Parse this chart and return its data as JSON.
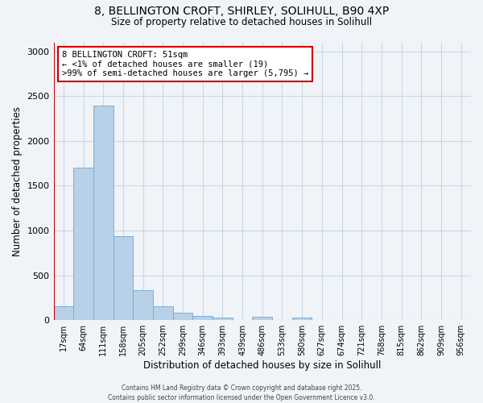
{
  "title_line1": "8, BELLINGTON CROFT, SHIRLEY, SOLIHULL, B90 4XP",
  "title_line2": "Size of property relative to detached houses in Solihull",
  "xlabel": "Distribution of detached houses by size in Solihull",
  "ylabel": "Number of detached properties",
  "categories": [
    "17sqm",
    "64sqm",
    "111sqm",
    "158sqm",
    "205sqm",
    "252sqm",
    "299sqm",
    "346sqm",
    "393sqm",
    "439sqm",
    "486sqm",
    "533sqm",
    "580sqm",
    "627sqm",
    "674sqm",
    "721sqm",
    "768sqm",
    "815sqm",
    "862sqm",
    "909sqm",
    "956sqm"
  ],
  "values": [
    150,
    1700,
    2390,
    940,
    335,
    150,
    80,
    50,
    25,
    5,
    35,
    5,
    30,
    0,
    0,
    0,
    0,
    0,
    0,
    0,
    0
  ],
  "bar_color": "#b8d0e8",
  "bar_edge_color": "#7aafd4",
  "annotation_box_color": "#ffffff",
  "annotation_border_color": "#cc0000",
  "property_line_color": "#cc0000",
  "annotation_text_line1": "8 BELLINGTON CROFT: 51sqm",
  "annotation_text_line2": "← <1% of detached houses are smaller (19)",
  "annotation_text_line3": ">99% of semi-detached houses are larger (5,795) →",
  "footer_line1": "Contains HM Land Registry data © Crown copyright and database right 2025.",
  "footer_line2": "Contains public sector information licensed under the Open Government Licence v3.0.",
  "ylim": [
    0,
    3100
  ],
  "yticks": [
    0,
    500,
    1000,
    1500,
    2000,
    2500,
    3000
  ],
  "background_color": "#f0f4f8",
  "grid_color": "#c8d8e8"
}
